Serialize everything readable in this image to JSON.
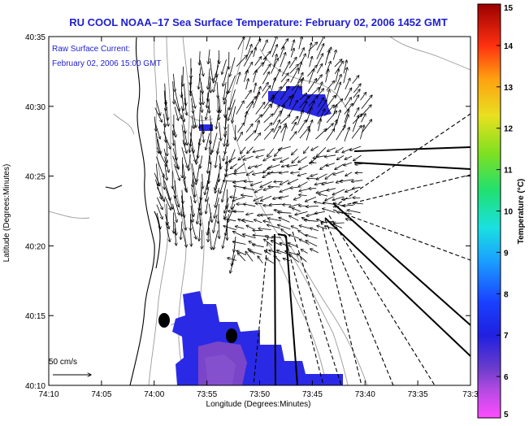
{
  "title": "RU COOL  NOAA–17  Sea Surface Temperature:  February 02, 2006 1452 GMT",
  "annotation": {
    "line1": "Raw Surface Current:",
    "line2": "February 02, 2006 15:00 GMT"
  },
  "scale_label": "50 cm/s",
  "axes": {
    "xlabel": "Longitude (Degrees:Minutes)",
    "ylabel": "Latitude (Degrees:Minutes)",
    "x_ticks": [
      "74:10",
      "74:05",
      "74:00",
      "73:55",
      "73:50",
      "73:45",
      "73:40",
      "73:35",
      "73:3"
    ],
    "y_ticks": [
      "40:35",
      "40:30",
      "40:25",
      "40:20",
      "40:15",
      "40:10"
    ]
  },
  "colorbar": {
    "label": "Temperature (°C)",
    "ticks": [
      "15",
      "14",
      "13",
      "12",
      "11",
      "10",
      "9",
      "8",
      "7",
      "6",
      "5"
    ],
    "min": 5,
    "max": 15
  },
  "colors": {
    "title": "#1f1fd0",
    "annotation": "#1f1fd0",
    "sst_blue": "#2a2ae6",
    "sst_purple": "#7a45c8",
    "contour": "#9a9a9a",
    "coast": "#000000"
  }
}
